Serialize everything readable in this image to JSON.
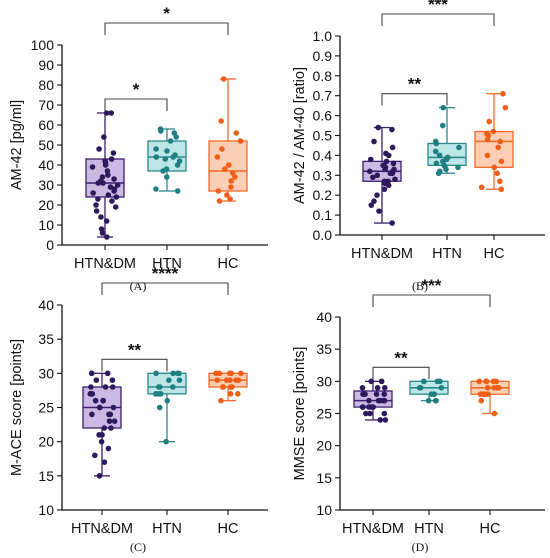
{
  "colors": {
    "HTN&DM": {
      "fill": "#c9b9e3",
      "stroke": "#3d1f6e",
      "dot": "#2d1a5c"
    },
    "HTN": {
      "fill": "#bfe6e6",
      "stroke": "#2a8a8c",
      "dot": "#1f7f82"
    },
    "HC": {
      "fill": "#fbcfb5",
      "stroke": "#f26a2a",
      "dot": "#ef5f1a"
    }
  },
  "chart_data": [
    {
      "type": "box",
      "panel_label": "(A)",
      "ylabel": "AM-42 [pg/ml]",
      "ylim": [
        0,
        100
      ],
      "yticks": [
        0,
        10,
        20,
        30,
        40,
        50,
        60,
        70,
        80,
        90,
        100
      ],
      "categories": [
        "HTN&DM",
        "HTN",
        "HC"
      ],
      "boxes": [
        {
          "group": "HTN&DM",
          "min": 4,
          "q1": 24,
          "median": 31,
          "q3": 43,
          "max": 66,
          "points": [
            66,
            66,
            54,
            48,
            46,
            43,
            42,
            41,
            40,
            39,
            37,
            35,
            34,
            33,
            32,
            31,
            31,
            30,
            29,
            28,
            27,
            26,
            25,
            24,
            23,
            22,
            20,
            19,
            17,
            14,
            12,
            8,
            6,
            4
          ]
        },
        {
          "group": "HTN",
          "min": 27,
          "q1": 37,
          "median": 44,
          "q3": 52,
          "max": 58,
          "points": [
            58,
            57,
            56,
            54,
            52,
            48,
            47,
            45,
            44,
            44,
            43,
            42,
            40,
            38,
            37,
            34,
            28,
            27
          ]
        },
        {
          "group": "HC",
          "min": 22,
          "q1": 27,
          "median": 37,
          "q3": 52,
          "max": 83,
          "points": [
            83,
            62,
            56,
            52,
            48,
            44,
            40,
            38,
            36,
            34,
            32,
            29,
            27,
            25,
            23,
            22
          ]
        }
      ],
      "significance": [
        {
          "from": "HTN&DM",
          "to": "HTN",
          "label": "*"
        },
        {
          "from": "HTN&DM",
          "to": "HC",
          "label": "*"
        }
      ]
    },
    {
      "type": "box",
      "panel_label": "(B)",
      "ylabel": "AM-42 / AM-40 [ratio]",
      "ylim": [
        0,
        1.0
      ],
      "yticks": [
        "0.0",
        "0.1",
        "0.2",
        "0.3",
        "0.4",
        "0.5",
        "0.6",
        "0.7",
        "0.8",
        "0.9",
        "1.0"
      ],
      "categories": [
        "HTN&DM",
        "HTN",
        "HC"
      ],
      "boxes": [
        {
          "group": "HTN&DM",
          "min": 0.06,
          "q1": 0.27,
          "median": 0.32,
          "q3": 0.37,
          "max": 0.54,
          "points": [
            0.54,
            0.53,
            0.47,
            0.44,
            0.41,
            0.4,
            0.38,
            0.37,
            0.36,
            0.35,
            0.35,
            0.34,
            0.33,
            0.33,
            0.32,
            0.32,
            0.31,
            0.31,
            0.3,
            0.29,
            0.28,
            0.27,
            0.27,
            0.26,
            0.25,
            0.23,
            0.2,
            0.17,
            0.15,
            0.12,
            0.06
          ]
        },
        {
          "group": "HTN",
          "min": 0.31,
          "q1": 0.35,
          "median": 0.39,
          "q3": 0.46,
          "max": 0.64,
          "points": [
            0.64,
            0.55,
            0.47,
            0.46,
            0.44,
            0.42,
            0.4,
            0.39,
            0.38,
            0.37,
            0.36,
            0.35,
            0.34,
            0.33,
            0.32,
            0.31
          ]
        },
        {
          "group": "HC",
          "min": 0.23,
          "q1": 0.34,
          "median": 0.47,
          "q3": 0.52,
          "max": 0.71,
          "points": [
            0.71,
            0.64,
            0.57,
            0.52,
            0.51,
            0.5,
            0.48,
            0.47,
            0.44,
            0.4,
            0.37,
            0.34,
            0.31,
            0.27,
            0.24,
            0.23
          ]
        }
      ],
      "significance": [
        {
          "from": "HTN&DM",
          "to": "HTN",
          "label": "**"
        },
        {
          "from": "HTN&DM",
          "to": "HC",
          "label": "***"
        }
      ]
    },
    {
      "type": "box",
      "panel_label": "(C)",
      "ylabel": "M-ACE score [points]",
      "ylim": [
        10,
        40
      ],
      "yticks": [
        10,
        15,
        20,
        25,
        30,
        35,
        40
      ],
      "categories": [
        "HTN&DM",
        "HTN",
        "HC"
      ],
      "boxes": [
        {
          "group": "HTN&DM",
          "min": 15,
          "q1": 22,
          "median": 25,
          "q3": 28,
          "max": 30,
          "points": [
            30,
            30,
            29,
            29,
            28,
            28,
            28,
            27,
            27,
            27,
            26,
            26,
            26,
            25,
            25,
            25,
            24,
            24,
            24,
            23,
            23,
            22,
            22,
            21,
            21,
            20,
            19,
            18,
            17,
            15
          ]
        },
        {
          "group": "HTN",
          "min": 20,
          "q1": 27,
          "median": 28,
          "q3": 30,
          "max": 30,
          "points": [
            30,
            30,
            30,
            30,
            29,
            29,
            28,
            28,
            28,
            27,
            27,
            27,
            26,
            25,
            20
          ]
        },
        {
          "group": "HC",
          "min": 26,
          "q1": 28,
          "median": 29,
          "q3": 30,
          "max": 30,
          "points": [
            30,
            30,
            30,
            30,
            30,
            29,
            29,
            29,
            29,
            29,
            28,
            28,
            28,
            28,
            27,
            27,
            26
          ]
        }
      ],
      "significance": [
        {
          "from": "HTN&DM",
          "to": "HTN",
          "label": "**"
        },
        {
          "from": "HTN&DM",
          "to": "HC",
          "label": "****"
        }
      ]
    },
    {
      "type": "box",
      "panel_label": "(D)",
      "ylabel": "MMSE score [points]",
      "ylim": [
        10,
        40
      ],
      "yticks": [
        10,
        15,
        20,
        25,
        30,
        35,
        40
      ],
      "categories": [
        "HTN&DM",
        "HTN",
        "HC"
      ],
      "boxes": [
        {
          "group": "HTN&DM",
          "min": 24,
          "q1": 26,
          "median": 27,
          "q3": 28.5,
          "max": 30,
          "points": [
            30,
            30,
            29,
            29,
            29,
            28,
            28,
            28,
            28,
            28,
            27,
            27,
            27,
            27,
            27,
            27,
            26,
            26,
            26,
            26,
            26,
            25,
            25,
            25,
            24,
            24
          ]
        },
        {
          "group": "HTN",
          "min": 27,
          "q1": 28,
          "median": 29,
          "q3": 30,
          "max": 30,
          "points": [
            30,
            30,
            30,
            30,
            29,
            29,
            29,
            29,
            28,
            28,
            28,
            27,
            27,
            27
          ]
        },
        {
          "group": "HC",
          "min": 25,
          "q1": 28,
          "median": 29,
          "q3": 30,
          "max": 30,
          "points": [
            30,
            30,
            30,
            30,
            30,
            29,
            29,
            29,
            29,
            28,
            28,
            28,
            28,
            27,
            25
          ]
        }
      ],
      "significance": [
        {
          "from": "HTN&DM",
          "to": "HTN",
          "label": "**"
        },
        {
          "from": "HTN&DM",
          "to": "HC",
          "label": "***"
        }
      ]
    }
  ]
}
